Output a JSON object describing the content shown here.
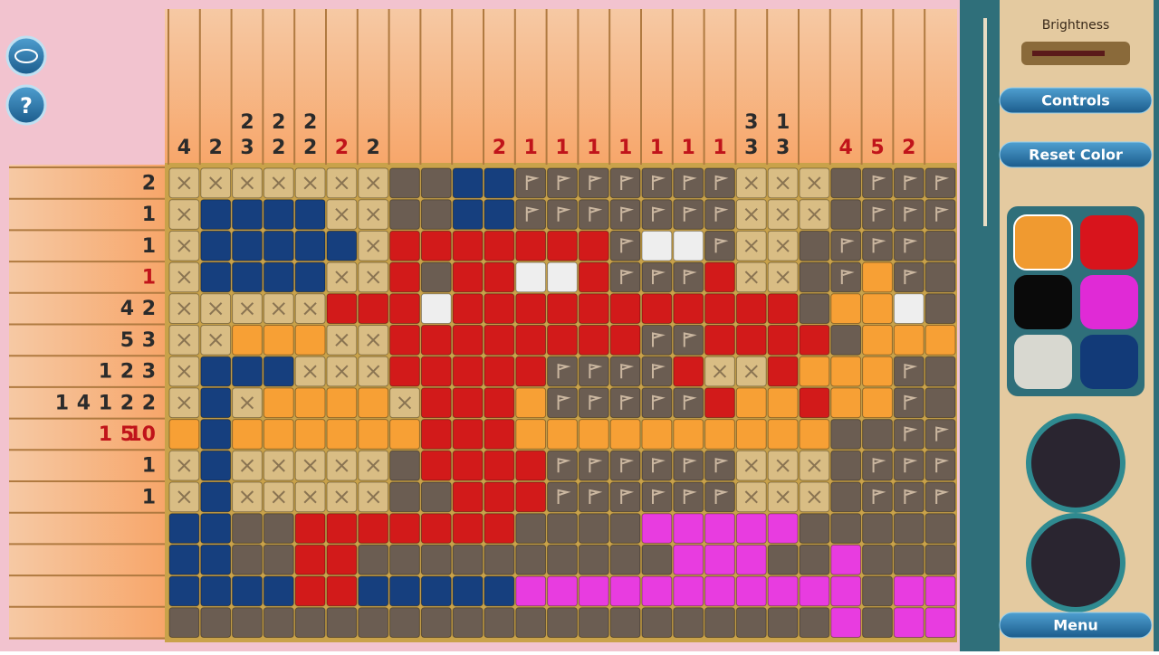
{
  "sidebar": {
    "brightness": "Brightness",
    "controls": "Controls",
    "reset_color": "Reset Color",
    "menu": "Menu"
  },
  "column_clues": [
    {
      "nums": [
        4
      ],
      "color": "#2b2b2b"
    },
    {
      "nums": [
        2
      ],
      "color": "#2b2b2b"
    },
    {
      "nums": [
        2,
        3
      ],
      "color": "#2b2b2b"
    },
    {
      "nums": [
        2,
        2
      ],
      "color": "#2b2b2b"
    },
    {
      "nums": [
        2,
        2
      ],
      "color": "#2b2b2b"
    },
    {
      "nums": [
        2
      ],
      "color": "#c0141a"
    },
    {
      "nums": [
        2
      ],
      "color": "#2b2b2b"
    },
    {
      "nums": [],
      "color": "#2b2b2b"
    },
    {
      "nums": [],
      "color": "#2b2b2b"
    },
    {
      "nums": [],
      "color": "#2b2b2b"
    },
    {
      "nums": [
        2
      ],
      "color": "#c0141a"
    },
    {
      "nums": [
        1
      ],
      "color": "#c0141a"
    },
    {
      "nums": [
        1
      ],
      "color": "#c0141a"
    },
    {
      "nums": [
        1
      ],
      "color": "#c0141a"
    },
    {
      "nums": [
        1
      ],
      "color": "#c0141a"
    },
    {
      "nums": [
        1
      ],
      "color": "#c0141a"
    },
    {
      "nums": [
        1
      ],
      "color": "#c0141a"
    },
    {
      "nums": [
        1
      ],
      "color": "#c0141a"
    },
    {
      "nums": [
        3,
        3
      ],
      "color": "#2b2b2b"
    },
    {
      "nums": [
        1,
        3
      ],
      "color": "#2b2b2b"
    },
    {
      "nums": [],
      "color": "#2b2b2b"
    },
    {
      "nums": [
        4
      ],
      "color": "#c0141a"
    },
    {
      "nums": [
        5
      ],
      "color": "#c0141a"
    },
    {
      "nums": [
        2
      ],
      "color": "#c0141a"
    },
    {
      "nums": [],
      "color": "#2b2b2b"
    }
  ],
  "row_clues": [
    {
      "nums": [
        2
      ],
      "color": "#2b2b2b"
    },
    {
      "nums": [
        1
      ],
      "color": "#2b2b2b"
    },
    {
      "nums": [
        1
      ],
      "color": "#2b2b2b"
    },
    {
      "nums": [
        1
      ],
      "color": "#c0141a"
    },
    {
      "nums": [
        4,
        2
      ],
      "color": "#2b2b2b"
    },
    {
      "nums": [
        5,
        3
      ],
      "color": "#2b2b2b"
    },
    {
      "nums": [
        1,
        2,
        3
      ],
      "color": "#2b2b2b"
    },
    {
      "nums": [
        1,
        4,
        1,
        2,
        2
      ],
      "color": "#2b2b2b"
    },
    {
      "nums": [
        1,
        5,
        10
      ],
      "color": "#c0141a"
    },
    {
      "nums": [
        1
      ],
      "color": "#2b2b2b"
    },
    {
      "nums": [
        1
      ],
      "color": "#2b2b2b"
    },
    {
      "nums": [],
      "color": "#2b2b2b"
    },
    {
      "nums": [],
      "color": "#2b2b2b"
    },
    {
      "nums": [],
      "color": "#2b2b2b"
    },
    {
      "nums": [],
      "color": "#2b2b2b"
    }
  ]
}
